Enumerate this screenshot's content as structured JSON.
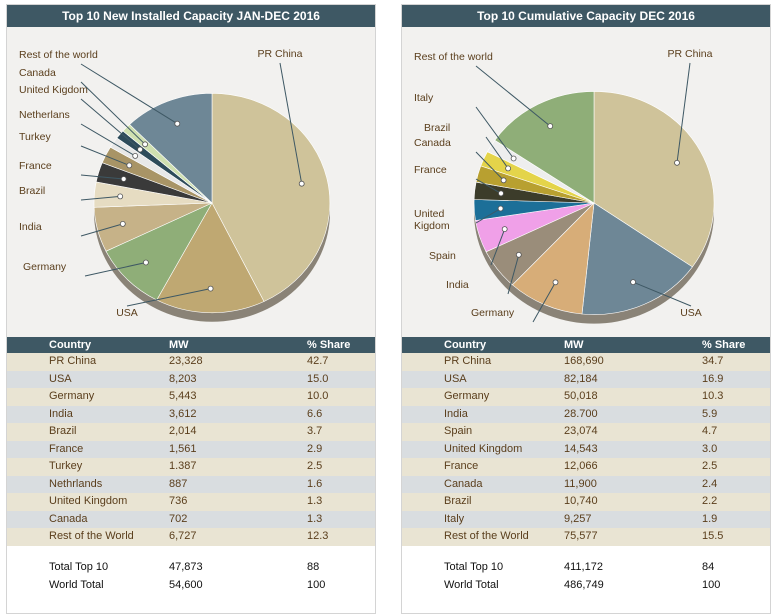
{
  "colors": {
    "header_bg": "#3e5864",
    "text": "#5a3e1c"
  },
  "panels": [
    {
      "title": "Top 10 New Installed Capacity JAN-DEC 2016",
      "columns": [
        "Country",
        "MW",
        "% Share"
      ],
      "rows": [
        [
          "PR China",
          "23,328",
          "42.7"
        ],
        [
          "USA",
          "8,203",
          "15.0"
        ],
        [
          "Germany",
          "5,443",
          "10.0"
        ],
        [
          "India",
          "3,612",
          "6.6"
        ],
        [
          "Brazil",
          "2,014",
          "3.7"
        ],
        [
          "France",
          "1,561",
          "2.9"
        ],
        [
          "Turkey",
          "1.387",
          "2.5"
        ],
        [
          "Nethrlands",
          "887",
          "1.6"
        ],
        [
          "United Kingdom",
          "736",
          "1.3"
        ],
        [
          "Canada",
          "702",
          "1.3"
        ],
        [
          "Rest of the World",
          "6,727",
          "12.3"
        ]
      ],
      "totals": [
        [
          "Total  Top 10",
          "47,873",
          "88"
        ],
        [
          "World Total",
          "54,600",
          "100"
        ]
      ]
    },
    {
      "title": "Top 10 Cumulative Capacity DEC 2016",
      "columns": [
        "Country",
        "MW",
        "% Share"
      ],
      "rows": [
        [
          "PR China",
          "168,690",
          "34.7"
        ],
        [
          "USA",
          "82,184",
          "16.9"
        ],
        [
          "Germany",
          "50,018",
          "10.3"
        ],
        [
          "India",
          "28.700",
          "5.9"
        ],
        [
          "Spain",
          "23,074",
          "4.7"
        ],
        [
          "United Kingdom",
          "14,543",
          "3.0"
        ],
        [
          "France",
          "12,066",
          "2.5"
        ],
        [
          "Canada",
          "11,900",
          "2.4"
        ],
        [
          "Brazil",
          "10,740",
          "2.2"
        ],
        [
          "Italy",
          "9,257",
          "1.9"
        ],
        [
          "Rest of the World",
          "75,577",
          "15.5"
        ]
      ],
      "totals": [
        [
          "Total  Top 10",
          "411,172",
          "84"
        ],
        [
          "World Total",
          "486,749",
          "100"
        ]
      ]
    }
  ],
  "chart_data": [
    {
      "type": "pie",
      "title": "Top 10 New Installed Capacity JAN-DEC 2016",
      "slices": [
        {
          "label": "PR China",
          "value": 42.7,
          "color": "#cfc39a"
        },
        {
          "label": "USA",
          "value": 15.0,
          "color": "#bfa872"
        },
        {
          "label": "Germany",
          "value": 10.0,
          "color": "#8fae78"
        },
        {
          "label": "India",
          "value": 6.6,
          "color": "#c6b288"
        },
        {
          "label": "Brazil",
          "value": 3.7,
          "color": "#e6dcc2"
        },
        {
          "label": "France",
          "value": 2.9,
          "color": "#3a3a3a"
        },
        {
          "label": "Turkey",
          "value": 2.5,
          "color": "#a89466"
        },
        {
          "label": "Netherlans",
          "value": 1.6,
          "color": "#e8e8e8"
        },
        {
          "label": "United Kigdom",
          "value": 1.3,
          "color": "#2d4b5a"
        },
        {
          "label": "Canada",
          "value": 1.3,
          "color": "#cfe0b0"
        },
        {
          "label": "Rest of the world",
          "value": 12.3,
          "color": "#6e8796"
        }
      ]
    },
    {
      "type": "pie",
      "title": "Top 10 Cumulative Capacity DEC 2016",
      "slices": [
        {
          "label": "PR China",
          "value": 34.7,
          "color": "#cfc39a"
        },
        {
          "label": "USA",
          "value": 16.9,
          "color": "#6e8796"
        },
        {
          "label": "Germany",
          "value": 10.3,
          "color": "#d7ad78"
        },
        {
          "label": "India",
          "value": 5.9,
          "color": "#9a8d7a"
        },
        {
          "label": "Spain",
          "value": 4.7,
          "color": "#f0a0e8"
        },
        {
          "label": "United Kigdom",
          "value": 3.0,
          "color": "#1c6f98"
        },
        {
          "label": "France",
          "value": 2.5,
          "color": "#3c3c2a"
        },
        {
          "label": "Canada",
          "value": 2.4,
          "color": "#b8a030"
        },
        {
          "label": "Brazil",
          "value": 2.2,
          "color": "#e4d44a"
        },
        {
          "label": "Italy",
          "value": 1.9,
          "color": "#eeeeee"
        },
        {
          "label": "Rest of the world",
          "value": 15.5,
          "color": "#8fae78"
        }
      ]
    }
  ]
}
